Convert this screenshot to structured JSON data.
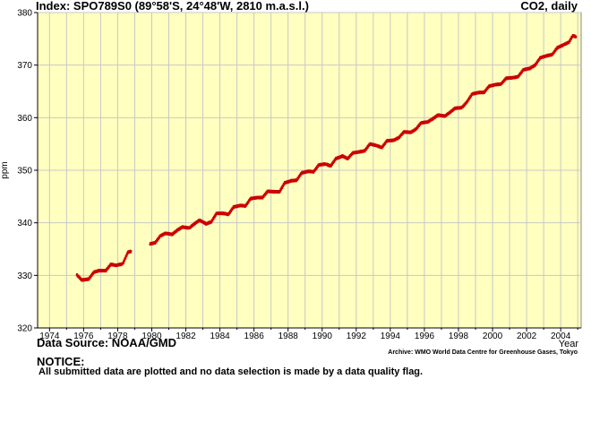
{
  "header": {
    "title": "Index: SPO789S0 (89°58'S, 24°48'W, 2810 m.a.s.l.)",
    "right": "CO2, daily"
  },
  "footer": {
    "source": "Data Source: NOAA/GMD",
    "archive": "Archive: WMO World Data Centre for Greenhouse Gases, Tokyo",
    "notice_title": "NOTICE:",
    "notice_text": "All submitted data are plotted and no data selection is made by a data quality flag."
  },
  "colors": {
    "plot_bg": "#ffffc0",
    "grid": "#c8c8c8",
    "series": "#cc0000"
  },
  "chart_data": {
    "type": "scatter",
    "title": "",
    "xlabel": "Year",
    "ylabel": "ppm",
    "xlim": [
      1973.3,
      2005.2
    ],
    "ylim": [
      320,
      380
    ],
    "x_ticks": [
      1974,
      1976,
      1978,
      1980,
      1982,
      1984,
      1986,
      1988,
      1990,
      1992,
      1994,
      1996,
      1998,
      2000,
      2002,
      2004
    ],
    "x_minor_ticks": [
      1975,
      1977,
      1979,
      1981,
      1983,
      1985,
      1987,
      1989,
      1991,
      1993,
      1995,
      1997,
      1999,
      2001,
      2003,
      2005
    ],
    "y_ticks": [
      320,
      330,
      340,
      350,
      360,
      370,
      380
    ],
    "grid": true,
    "series": [
      {
        "values": [
          [
            1975.6,
            330.1
          ],
          [
            1975.9,
            329.1
          ],
          [
            1976.3,
            329.3
          ],
          [
            1976.6,
            330.6
          ],
          [
            1976.9,
            330.9
          ],
          [
            1977.3,
            330.9
          ],
          [
            1977.6,
            332.1
          ],
          [
            1977.9,
            331.9
          ],
          [
            1978.3,
            332.2
          ],
          [
            1978.6,
            334.4
          ],
          [
            1978.8,
            334.6
          ],
          [
            1979.9,
            336.0
          ],
          [
            1980.2,
            336.2
          ],
          [
            1980.5,
            337.5
          ],
          [
            1980.8,
            338.0
          ],
          [
            1981.2,
            337.8
          ],
          [
            1981.5,
            338.6
          ],
          [
            1981.8,
            339.2
          ],
          [
            1982.2,
            339.0
          ],
          [
            1982.5,
            339.8
          ],
          [
            1982.8,
            340.5
          ],
          [
            1983.2,
            339.8
          ],
          [
            1983.5,
            340.2
          ],
          [
            1983.8,
            341.8
          ],
          [
            1984.2,
            341.8
          ],
          [
            1984.5,
            341.6
          ],
          [
            1984.8,
            343.0
          ],
          [
            1985.2,
            343.3
          ],
          [
            1985.5,
            343.2
          ],
          [
            1985.8,
            344.6
          ],
          [
            1986.2,
            344.8
          ],
          [
            1986.5,
            344.8
          ],
          [
            1986.8,
            346.0
          ],
          [
            1987.2,
            345.9
          ],
          [
            1987.5,
            345.9
          ],
          [
            1987.8,
            347.6
          ],
          [
            1988.2,
            348.0
          ],
          [
            1988.5,
            348.1
          ],
          [
            1988.8,
            349.5
          ],
          [
            1989.2,
            349.8
          ],
          [
            1989.5,
            349.7
          ],
          [
            1989.8,
            351.0
          ],
          [
            1990.2,
            351.2
          ],
          [
            1990.5,
            350.8
          ],
          [
            1990.8,
            352.2
          ],
          [
            1991.2,
            352.7
          ],
          [
            1991.5,
            352.2
          ],
          [
            1991.8,
            353.3
          ],
          [
            1992.2,
            353.5
          ],
          [
            1992.5,
            353.7
          ],
          [
            1992.8,
            355.0
          ],
          [
            1993.2,
            354.7
          ],
          [
            1993.5,
            354.3
          ],
          [
            1993.8,
            355.6
          ],
          [
            1994.2,
            355.7
          ],
          [
            1994.5,
            356.2
          ],
          [
            1994.8,
            357.3
          ],
          [
            1995.2,
            357.2
          ],
          [
            1995.5,
            357.8
          ],
          [
            1995.8,
            359.0
          ],
          [
            1996.2,
            359.2
          ],
          [
            1996.5,
            359.8
          ],
          [
            1996.8,
            360.5
          ],
          [
            1997.2,
            360.3
          ],
          [
            1997.5,
            361.0
          ],
          [
            1997.8,
            361.8
          ],
          [
            1998.2,
            361.9
          ],
          [
            1998.5,
            363.0
          ],
          [
            1998.8,
            364.5
          ],
          [
            1999.2,
            364.8
          ],
          [
            1999.5,
            364.8
          ],
          [
            1999.8,
            366.0
          ],
          [
            2000.2,
            366.3
          ],
          [
            2000.5,
            366.4
          ],
          [
            2000.8,
            367.5
          ],
          [
            2001.2,
            367.6
          ],
          [
            2001.5,
            367.8
          ],
          [
            2001.8,
            369.1
          ],
          [
            2002.2,
            369.4
          ],
          [
            2002.5,
            370.0
          ],
          [
            2002.8,
            371.4
          ],
          [
            2003.2,
            371.8
          ],
          [
            2003.5,
            372.0
          ],
          [
            2003.8,
            373.3
          ],
          [
            2004.2,
            373.9
          ],
          [
            2004.5,
            374.4
          ],
          [
            2004.7,
            375.6
          ],
          [
            2004.9,
            375.4
          ]
        ]
      }
    ]
  }
}
